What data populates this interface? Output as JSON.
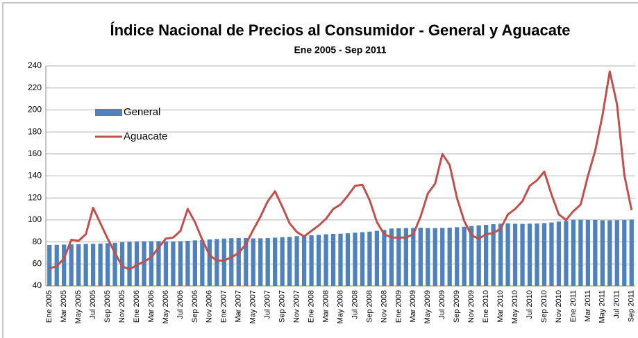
{
  "chart_data": {
    "type": "bar_line",
    "title": "Índice Nacional de Precios al Consumidor - General y Aguacate",
    "subtitle": "Ene 2005 - Sep 2011",
    "categories": [
      "Ene 2005",
      null,
      "Mar 2005",
      null,
      "May 2005",
      null,
      "Jul 2005",
      null,
      "Sep 2005",
      null,
      "Nov 2005",
      null,
      "Ene 2006",
      null,
      "Mar 2006",
      null,
      "May 2006",
      null,
      "Jul 2006",
      null,
      "Sep 2006",
      null,
      "Nov 2006",
      null,
      "Ene 2007",
      null,
      "Mar 2007",
      null,
      "May 2007",
      null,
      "Jul 2007",
      null,
      "Sep 2007",
      null,
      "Nov 2007",
      null,
      "Ene 2008",
      null,
      "Mar 2008",
      null,
      "May 2008",
      null,
      "Jul 2008",
      null,
      "Sep 2008",
      null,
      "Nov 2008",
      null,
      "Ene 2009",
      null,
      "Mar 2009",
      null,
      "May 2009",
      null,
      "Jul 2009",
      null,
      "Sep 2009",
      null,
      "Nov 2009",
      null,
      "Ene 2010",
      null,
      "Mar 2010",
      null,
      "May 2010",
      null,
      "Jul 2010",
      null,
      "Sep 2010",
      null,
      "Nov 2010",
      null,
      "Ene 2011",
      null,
      "Mar 2011",
      null,
      "May 2011",
      null,
      "Jul 2011",
      null,
      "Sep 2011"
    ],
    "series": [
      {
        "name": "General",
        "kind": "bar",
        "color": "#4f81bd",
        "values": [
          77.2,
          77.4,
          77.6,
          77.8,
          78.0,
          78.2,
          78.3,
          78.5,
          78.8,
          79.2,
          79.7,
          80.2,
          80.5,
          80.6,
          80.7,
          80.8,
          80.6,
          80.5,
          80.7,
          81.0,
          81.4,
          81.7,
          82.2,
          82.7,
          83.1,
          83.4,
          83.6,
          83.6,
          83.2,
          83.3,
          83.5,
          83.9,
          84.3,
          84.6,
          85.3,
          85.7,
          86.0,
          86.4,
          87.0,
          87.3,
          87.5,
          87.9,
          88.4,
          88.9,
          89.4,
          90.1,
          91.0,
          92.2,
          92.5,
          92.6,
          92.7,
          92.9,
          92.6,
          92.6,
          92.8,
          93.0,
          93.4,
          93.8,
          94.5,
          95.1,
          95.5,
          96.1,
          96.6,
          96.9,
          96.5,
          96.4,
          96.6,
          96.8,
          97.1,
          97.7,
          98.5,
          99.2,
          100.2,
          100.2,
          100.1,
          100.1,
          99.6,
          99.6,
          99.8,
          100.0,
          100.3
        ]
      },
      {
        "name": "Aguacate",
        "kind": "line",
        "color": "#c0504d",
        "values": [
          56,
          58,
          65,
          82,
          81,
          87,
          111,
          97,
          83,
          70,
          58,
          55,
          59,
          62,
          66,
          75,
          83,
          84,
          90,
          110,
          98,
          82,
          68,
          63,
          63,
          66,
          70,
          78,
          91,
          103,
          117,
          126,
          112,
          97,
          89,
          85,
          90,
          95,
          101,
          110,
          114,
          122,
          131,
          132,
          118,
          98,
          87,
          84,
          84,
          84,
          87,
          103,
          124,
          133,
          160,
          150,
          120,
          99,
          86,
          83,
          87,
          88,
          92,
          105,
          110,
          117,
          131,
          136,
          144,
          123,
          105,
          100,
          108,
          114,
          140,
          163,
          195,
          235,
          205,
          141,
          109
        ]
      }
    ],
    "ylim": [
      40,
      240
    ],
    "yticks": [
      40,
      60,
      80,
      100,
      120,
      140,
      160,
      180,
      200,
      220,
      240
    ],
    "grid": true
  }
}
